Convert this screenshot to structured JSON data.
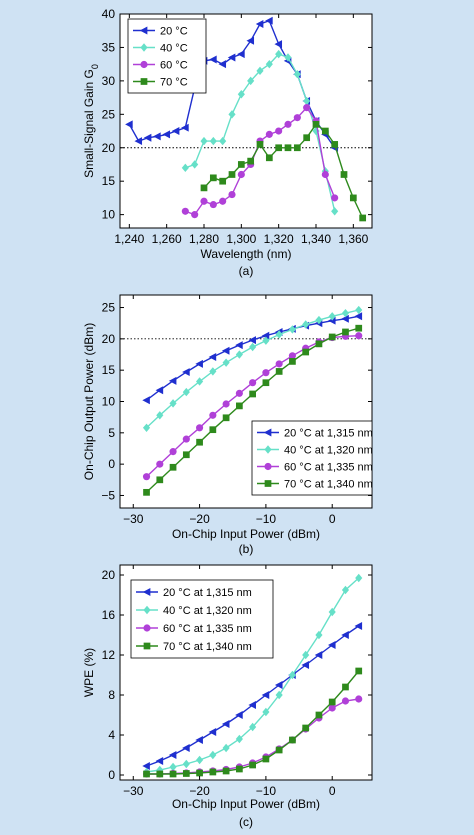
{
  "page": {
    "background": "#cfe2f3"
  },
  "chart_data": [
    {
      "type": "line",
      "panel_label": "(a)",
      "xlabel": "Wavelength (nm)",
      "ylabel": "Small-Signal Gain G",
      "ylabel_sub": "0",
      "xlim": [
        1235,
        1370
      ],
      "ylim": [
        8,
        40
      ],
      "xticks": [
        1240,
        1260,
        1280,
        1300,
        1320,
        1340,
        1360
      ],
      "xtick_labels": [
        "1,240",
        "1,260",
        "1,280",
        "1,300",
        "1,320",
        "1,340",
        "1,360"
      ],
      "yticks": [
        10,
        15,
        20,
        25,
        30,
        35,
        40
      ],
      "ytick_labels": [
        "10",
        "15",
        "20",
        "25",
        "30",
        "35",
        "40"
      ],
      "ref_line": 20,
      "legend_position": "top-left",
      "series": [
        {
          "name": "20 °C",
          "color": "#1f2fcf",
          "marker": "tri-left",
          "x": [
            1240,
            1245,
            1250,
            1255,
            1260,
            1265,
            1270,
            1275,
            1280,
            1285,
            1290,
            1295,
            1300,
            1305,
            1310,
            1315,
            1320,
            1325,
            1330,
            1335,
            1340,
            1345,
            1350
          ],
          "y": [
            23.5,
            21,
            21.5,
            21.7,
            22,
            22.5,
            23,
            29,
            33,
            33.2,
            32.5,
            33.5,
            34,
            36,
            38.5,
            39,
            35.5,
            33,
            31,
            27,
            24,
            22,
            20
          ]
        },
        {
          "name": "40 °C",
          "color": "#66e0c8",
          "marker": "diamond",
          "x": [
            1270,
            1275,
            1280,
            1285,
            1290,
            1295,
            1300,
            1305,
            1310,
            1315,
            1320,
            1325,
            1330,
            1335,
            1340,
            1345,
            1350
          ],
          "y": [
            17,
            17.5,
            21,
            21,
            21,
            25,
            28,
            30,
            31.5,
            32.5,
            34,
            33.5,
            31,
            27,
            22.5,
            16.5,
            10.5
          ]
        },
        {
          "name": "60 °C",
          "color": "#b040d8",
          "marker": "circle",
          "x": [
            1270,
            1275,
            1280,
            1285,
            1290,
            1295,
            1300,
            1305,
            1310,
            1315,
            1320,
            1325,
            1330,
            1335,
            1340,
            1345,
            1350
          ],
          "y": [
            10.5,
            10,
            12,
            11.5,
            12,
            13,
            16,
            17.5,
            21,
            22,
            22.5,
            23.5,
            24.5,
            26,
            24,
            16,
            12.5
          ]
        },
        {
          "name": "70 °C",
          "color": "#2e8a1c",
          "marker": "square",
          "x": [
            1280,
            1285,
            1290,
            1295,
            1300,
            1305,
            1310,
            1315,
            1320,
            1325,
            1330,
            1335,
            1340,
            1345,
            1350,
            1355,
            1360,
            1365
          ],
          "y": [
            14,
            15.5,
            15,
            16,
            17.5,
            18,
            20.5,
            18.5,
            20,
            20,
            20,
            21.5,
            23.5,
            22.5,
            20.5,
            16,
            12.5,
            9.5
          ]
        }
      ]
    },
    {
      "type": "line",
      "panel_label": "(b)",
      "xlabel": "On-Chip Input Power (dBm)",
      "ylabel": "On-Chip Output Power (dBm)",
      "xlim": [
        -32,
        6
      ],
      "ylim": [
        -7,
        27
      ],
      "xticks": [
        -30,
        -20,
        -10,
        0
      ],
      "xtick_labels": [
        "−30",
        "−20",
        "−10",
        "0"
      ],
      "yticks": [
        -5,
        0,
        5,
        10,
        15,
        20,
        25
      ],
      "ytick_labels": [
        "−5",
        "0",
        "5",
        "10",
        "15",
        "20",
        "25"
      ],
      "ref_line": 20,
      "legend_position": "bottom-right",
      "series": [
        {
          "name": "20 °C at 1,315 nm",
          "color": "#1f2fcf",
          "marker": "tri-left",
          "x": [
            -28,
            -26,
            -24,
            -22,
            -20,
            -18,
            -16,
            -14,
            -12,
            -10,
            -8,
            -6,
            -4,
            -2,
            0,
            2,
            4
          ],
          "y": [
            10.2,
            11.8,
            13.3,
            14.7,
            16,
            17.1,
            18.1,
            19,
            19.8,
            20.5,
            21.1,
            21.6,
            22.1,
            22.5,
            22.9,
            23.2,
            23.6
          ]
        },
        {
          "name": "40 °C at 1,320 nm",
          "color": "#66e0c8",
          "marker": "diamond",
          "x": [
            -28,
            -26,
            -24,
            -22,
            -20,
            -18,
            -16,
            -14,
            -12,
            -10,
            -8,
            -6,
            -4,
            -2,
            0,
            2,
            4
          ],
          "y": [
            5.8,
            7.8,
            9.7,
            11.5,
            13.2,
            14.8,
            16.2,
            17.5,
            18.7,
            19.7,
            20.7,
            21.5,
            22.3,
            23,
            23.6,
            24.1,
            24.6
          ]
        },
        {
          "name": "60 °C at 1,335 nm",
          "color": "#b040d8",
          "marker": "circle",
          "x": [
            -28,
            -26,
            -24,
            -22,
            -20,
            -18,
            -16,
            -14,
            -12,
            -10,
            -8,
            -6,
            -4,
            -2,
            0,
            2,
            4
          ],
          "y": [
            -2,
            0,
            2,
            4,
            5.8,
            7.8,
            9.6,
            11.3,
            13,
            14.6,
            16,
            17.3,
            18.5,
            19.5,
            20.2,
            20.4,
            20.5
          ]
        },
        {
          "name": "70 °C at 1,340 nm",
          "color": "#2e8a1c",
          "marker": "square",
          "x": [
            -28,
            -26,
            -24,
            -22,
            -20,
            -18,
            -16,
            -14,
            -12,
            -10,
            -8,
            -6,
            -4,
            -2,
            0,
            2,
            4
          ],
          "y": [
            -4.5,
            -2.5,
            -0.5,
            1.5,
            3.5,
            5.5,
            7.4,
            9.3,
            11.2,
            13,
            14.8,
            16.4,
            17.9,
            19.2,
            20.3,
            21.1,
            21.7
          ]
        }
      ]
    },
    {
      "type": "line",
      "panel_label": "(c)",
      "xlabel": "On-Chip Input Power (dBm)",
      "ylabel": "WPE (%)",
      "xlim": [
        -32,
        6
      ],
      "ylim": [
        -0.5,
        21
      ],
      "xticks": [
        -30,
        -20,
        -10,
        0
      ],
      "xtick_labels": [
        "−30",
        "−20",
        "−10",
        "0"
      ],
      "yticks": [
        0,
        4,
        8,
        12,
        16,
        20
      ],
      "ytick_labels": [
        "0",
        "4",
        "8",
        "12",
        "16",
        "20"
      ],
      "legend_position": "top-left",
      "series": [
        {
          "name": "20 °C at 1,315 nm",
          "color": "#1f2fcf",
          "marker": "tri-left",
          "x": [
            -28,
            -26,
            -24,
            -22,
            -20,
            -18,
            -16,
            -14,
            -12,
            -10,
            -8,
            -6,
            -4,
            -2,
            0,
            2,
            4
          ],
          "y": [
            0.9,
            1.4,
            2,
            2.7,
            3.5,
            4.3,
            5.1,
            6,
            7,
            8,
            9,
            10,
            11,
            12,
            13,
            14,
            14.9
          ]
        },
        {
          "name": "40 °C at 1,320 nm",
          "color": "#66e0c8",
          "marker": "diamond",
          "x": [
            -28,
            -26,
            -24,
            -22,
            -20,
            -18,
            -16,
            -14,
            -12,
            -10,
            -8,
            -6,
            -4,
            -2,
            0,
            2,
            4
          ],
          "y": [
            0.3,
            0.5,
            0.8,
            1.1,
            1.5,
            2,
            2.7,
            3.6,
            4.8,
            6.3,
            8,
            10,
            12,
            14,
            16.3,
            18.5,
            19.7
          ]
        },
        {
          "name": "60 °C at 1,335 nm",
          "color": "#b040d8",
          "marker": "circle",
          "x": [
            -28,
            -26,
            -24,
            -22,
            -20,
            -18,
            -16,
            -14,
            -12,
            -10,
            -8,
            -6,
            -4,
            -2,
            0,
            2,
            4
          ],
          "y": [
            0.1,
            0.1,
            0.15,
            0.2,
            0.3,
            0.4,
            0.55,
            0.8,
            1.2,
            1.8,
            2.6,
            3.5,
            4.6,
            5.7,
            6.7,
            7.4,
            7.6
          ]
        },
        {
          "name": "70 °C at 1,340 nm",
          "color": "#2e8a1c",
          "marker": "square",
          "x": [
            -28,
            -26,
            -24,
            -22,
            -20,
            -18,
            -16,
            -14,
            -12,
            -10,
            -8,
            -6,
            -4,
            -2,
            0,
            2,
            4
          ],
          "y": [
            0.1,
            0.1,
            0.1,
            0.15,
            0.2,
            0.3,
            0.4,
            0.6,
            1,
            1.6,
            2.5,
            3.5,
            4.7,
            6,
            7.3,
            8.8,
            10.4
          ]
        }
      ]
    }
  ]
}
